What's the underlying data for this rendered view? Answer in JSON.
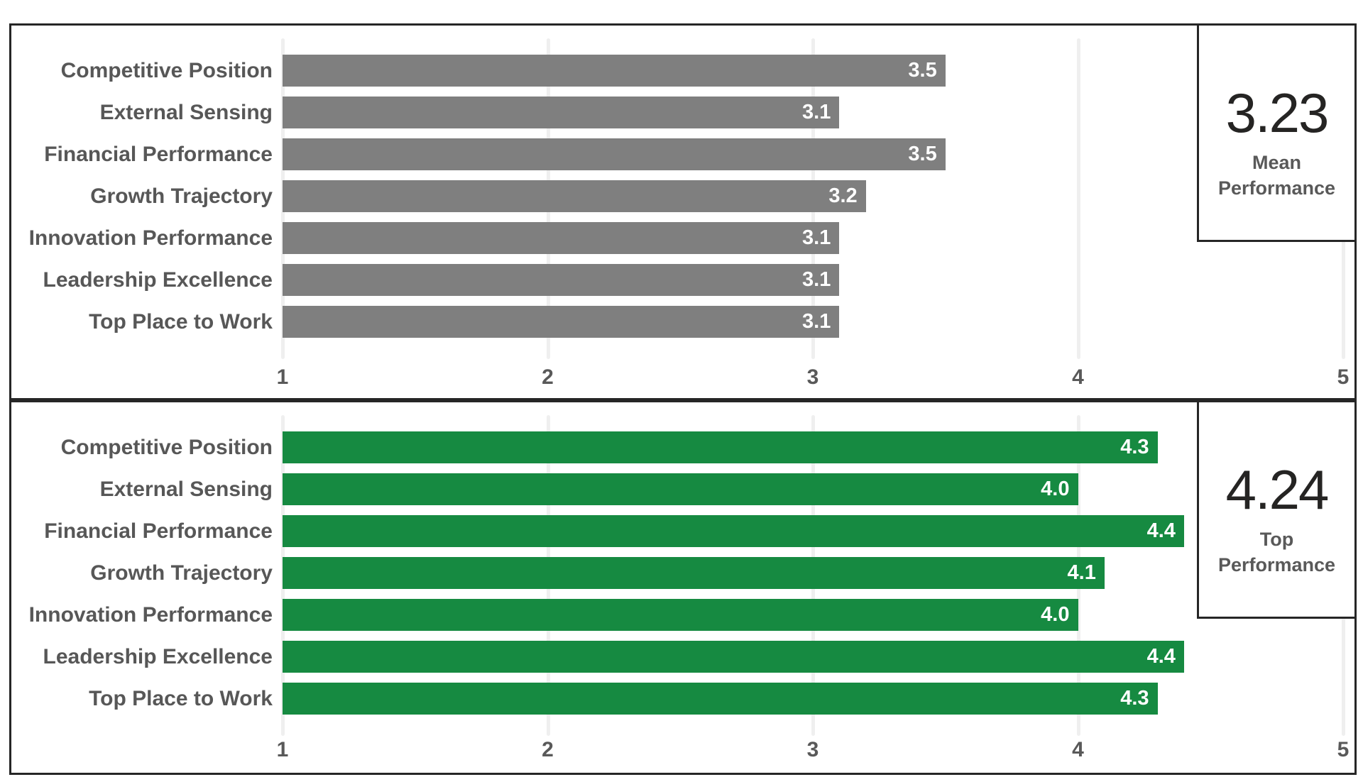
{
  "chart_data": [
    {
      "type": "bar",
      "orientation": "horizontal",
      "title": "",
      "categories": [
        "Competitive Position",
        "External Sensing",
        "Financial Performance",
        "Growth Trajectory",
        "Innovation Performance",
        "Leadership Excellence",
        "Top Place to Work"
      ],
      "series": [
        {
          "name": "Mean Performance",
          "values": [
            3.5,
            3.1,
            3.5,
            3.2,
            3.1,
            3.1,
            3.1
          ]
        }
      ],
      "data_labels": [
        "3.5",
        "3.1",
        "3.5",
        "3.2",
        "3.1",
        "3.1",
        "3.1"
      ],
      "xlim": [
        1,
        5
      ],
      "xticks": [
        "1",
        "2",
        "3",
        "4",
        "5"
      ],
      "grid": true,
      "legend": "none",
      "bar_color": "#7f7f7f",
      "callout": {
        "value": "3.23",
        "label": "Mean Performance"
      }
    },
    {
      "type": "bar",
      "orientation": "horizontal",
      "title": "",
      "categories": [
        "Competitive Position",
        "External Sensing",
        "Financial Performance",
        "Growth Trajectory",
        "Innovation Performance",
        "Leadership Excellence",
        "Top Place to Work"
      ],
      "series": [
        {
          "name": "Top Performance",
          "values": [
            4.3,
            4.0,
            4.4,
            4.1,
            4.0,
            4.4,
            4.3
          ]
        }
      ],
      "data_labels": [
        "4.3",
        "4.0",
        "4.4",
        "4.1",
        "4.0",
        "4.4",
        "4.3"
      ],
      "xlim": [
        1,
        5
      ],
      "xticks": [
        "1",
        "2",
        "3",
        "4",
        "5"
      ],
      "grid": true,
      "legend": "none",
      "bar_color": "#168a41",
      "callout": {
        "value": "4.24",
        "label": "Top Performance"
      }
    }
  ],
  "colors": {
    "mean_bar": "#7f7f7f",
    "top_bar": "#168a41",
    "panel_border": "#262626",
    "gridline": "#efefef",
    "category_label": "#575757",
    "axis_tick": "#595959",
    "data_label": "#ffffff",
    "callout_value": "#252423",
    "callout_label": "#595959"
  }
}
